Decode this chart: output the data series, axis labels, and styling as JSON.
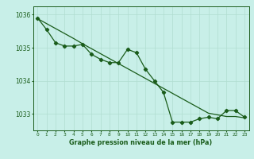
{
  "hours": [
    0,
    1,
    2,
    3,
    4,
    5,
    6,
    7,
    8,
    9,
    10,
    11,
    12,
    13,
    14,
    15,
    16,
    17,
    18,
    19,
    20,
    21,
    22,
    23
  ],
  "line1": [
    1035.9,
    1035.55,
    1035.15,
    1035.05,
    1035.05,
    1035.1,
    1034.8,
    1034.65,
    1034.55,
    1034.55,
    1034.95,
    1034.85,
    1034.35,
    1034.0,
    1033.65,
    1032.75,
    1032.75,
    1032.75,
    1032.85,
    1032.9,
    1032.85,
    1033.1,
    1033.1,
    1032.9
  ],
  "trend": [
    1035.88,
    1035.73,
    1035.58,
    1035.43,
    1035.28,
    1035.12,
    1034.97,
    1034.82,
    1034.67,
    1034.52,
    1034.37,
    1034.22,
    1034.07,
    1033.92,
    1033.77,
    1033.62,
    1033.47,
    1033.32,
    1033.17,
    1033.02,
    1032.97,
    1032.92,
    1032.92,
    1032.88
  ],
  "line_color": "#1a5c1a",
  "bg_color": "#c8efe8",
  "grid_color": "#b0ddd0",
  "xlabel": "Graphe pression niveau de la mer (hPa)",
  "ylim": [
    1032.5,
    1036.25
  ],
  "yticks": [
    1033,
    1034,
    1035,
    1036
  ],
  "xticks": [
    0,
    1,
    2,
    3,
    4,
    5,
    6,
    7,
    8,
    9,
    10,
    11,
    12,
    13,
    14,
    15,
    16,
    17,
    18,
    19,
    20,
    21,
    22,
    23
  ],
  "xlabel_fontsize": 5.8,
  "ytick_fontsize": 5.5,
  "xtick_fontsize": 4.2
}
